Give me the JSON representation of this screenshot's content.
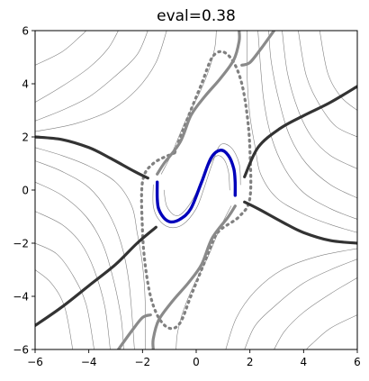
{
  "chart_data": {
    "type": "line",
    "title": "eval=0.38",
    "xlabel": "",
    "ylabel": "",
    "xlim": [
      -6,
      6
    ],
    "ylim": [
      -6,
      6
    ],
    "x_ticks": [
      -6,
      -4,
      -2,
      0,
      2,
      4,
      6
    ],
    "y_ticks": [
      -6,
      -4,
      -2,
      0,
      2,
      4,
      6
    ],
    "x_tick_labels": [
      "−6",
      "−4",
      "−2",
      "0",
      "2",
      "4",
      "6"
    ],
    "y_tick_labels": [
      "−6",
      "−4",
      "−2",
      "0",
      "2",
      "4",
      "6"
    ],
    "grid": false,
    "colors": {
      "flow_lines": "#808080",
      "separatrix": "#333333",
      "separatrix_gray": "#8a8a8a",
      "dotted_boundary": "#808080",
      "limit_cycle": "#0000bb"
    },
    "series": [
      {
        "role": "limit-cycle",
        "style": "solid-thick-blue",
        "points": [
          [
            -1.45,
            0.3
          ],
          [
            -1.45,
            -0.3
          ],
          [
            -1.4,
            -0.7
          ],
          [
            -1.2,
            -1.05
          ],
          [
            -0.95,
            -1.2
          ],
          [
            -0.6,
            -1.1
          ],
          [
            -0.2,
            -0.7
          ],
          [
            0.2,
            0.3
          ],
          [
            0.55,
            1.2
          ],
          [
            0.9,
            1.5
          ],
          [
            1.2,
            1.3
          ],
          [
            1.4,
            0.8
          ],
          [
            1.45,
            0.3
          ],
          [
            1.45,
            -0.2
          ]
        ]
      },
      {
        "role": "dotted-boundary",
        "style": "dotted",
        "points": [
          [
            -0.8,
            1.4
          ],
          [
            -0.4,
            2.5
          ],
          [
            0.2,
            4.0
          ],
          [
            0.6,
            5.0
          ],
          [
            1.0,
            5.2
          ],
          [
            1.4,
            4.8
          ],
          [
            1.7,
            4.0
          ],
          [
            1.9,
            2.8
          ],
          [
            2.0,
            1.5
          ],
          [
            2.0,
            -0.3
          ],
          [
            1.6,
            -1.0
          ],
          [
            0.8,
            -1.6
          ],
          [
            0.4,
            -2.5
          ],
          [
            -0.2,
            -4.0
          ],
          [
            -0.6,
            -5.0
          ],
          [
            -1.0,
            -5.2
          ],
          [
            -1.4,
            -4.8
          ],
          [
            -1.7,
            -4.0
          ],
          [
            -1.9,
            -2.8
          ],
          [
            -2.0,
            -1.5
          ],
          [
            -2.0,
            0.3
          ],
          [
            -1.6,
            1.0
          ],
          [
            -0.8,
            1.4
          ]
        ]
      },
      {
        "role": "separatrix",
        "style": "solid-thick-dark",
        "points": [
          [
            -6,
            2.0
          ],
          [
            -5,
            1.9
          ],
          [
            -4,
            1.6
          ],
          [
            -3.2,
            1.2
          ],
          [
            -2.3,
            0.7
          ],
          [
            -1.8,
            0.45
          ]
        ]
      },
      {
        "role": "separatrix",
        "style": "solid-thick-dark",
        "points": [
          [
            6,
            -2.0
          ],
          [
            5,
            -1.9
          ],
          [
            4,
            -1.6
          ],
          [
            3.2,
            -1.2
          ],
          [
            2.3,
            -0.7
          ],
          [
            1.8,
            -0.45
          ]
        ]
      },
      {
        "role": "separatrix",
        "style": "solid-thick-dark",
        "points": [
          [
            6,
            3.9
          ],
          [
            5,
            3.3
          ],
          [
            4,
            2.8
          ],
          [
            3.1,
            2.3
          ],
          [
            2.3,
            1.6
          ],
          [
            1.8,
            0.5
          ]
        ]
      },
      {
        "role": "separatrix",
        "style": "solid-thick-dark",
        "points": [
          [
            -6,
            -5.1
          ],
          [
            -5,
            -4.4
          ],
          [
            -4,
            -3.6
          ],
          [
            -3,
            -2.8
          ],
          [
            -2.2,
            -2.0
          ],
          [
            -1.5,
            -1.4
          ]
        ]
      },
      {
        "role": "separatrix",
        "style": "solid-thick-gray",
        "points": [
          [
            -1.45,
            0.6
          ],
          [
            -1.2,
            1.0
          ],
          [
            -0.6,
            1.8
          ],
          [
            -0.2,
            2.8
          ],
          [
            0.3,
            3.5
          ],
          [
            0.9,
            4.2
          ],
          [
            1.4,
            4.9
          ],
          [
            1.6,
            5.6
          ],
          [
            1.6,
            6.0
          ]
        ]
      },
      {
        "role": "separatrix",
        "style": "solid-thick-gray",
        "points": [
          [
            1.45,
            -0.6
          ],
          [
            1.2,
            -1.0
          ],
          [
            0.6,
            -1.8
          ],
          [
            0.2,
            -2.8
          ],
          [
            -0.3,
            -3.5
          ],
          [
            -0.9,
            -4.2
          ],
          [
            -1.4,
            -4.9
          ],
          [
            -1.6,
            -5.6
          ],
          [
            -1.6,
            -6.0
          ]
        ]
      },
      {
        "role": "separatrix",
        "style": "solid-thick-gray",
        "points": [
          [
            -2.9,
            -6.0
          ],
          [
            -2.4,
            -5.3
          ],
          [
            -2.0,
            -4.8
          ],
          [
            -1.7,
            -4.7
          ]
        ]
      },
      {
        "role": "separatrix",
        "style": "solid-thick-gray",
        "points": [
          [
            2.9,
            6.0
          ],
          [
            2.4,
            5.3
          ],
          [
            2.0,
            4.8
          ],
          [
            1.7,
            4.7
          ]
        ]
      },
      {
        "role": "flow-line",
        "style": "thin",
        "points": [
          [
            -6,
            4.7
          ],
          [
            -5,
            5.2
          ],
          [
            -4.3,
            5.8
          ],
          [
            -4.1,
            6.0
          ]
        ]
      },
      {
        "role": "flow-line",
        "style": "thin",
        "points": [
          [
            -6,
            3.3
          ],
          [
            -5,
            3.9
          ],
          [
            -4,
            4.6
          ],
          [
            -3.3,
            5.3
          ],
          [
            -2.9,
            6.0
          ]
        ]
      },
      {
        "role": "flow-line",
        "style": "thin",
        "points": [
          [
            -6,
            2.6
          ],
          [
            -5,
            3.0
          ],
          [
            -4,
            3.5
          ],
          [
            -3,
            4.3
          ],
          [
            -2.2,
            5.1
          ],
          [
            -1.8,
            6.0
          ]
        ]
      },
      {
        "role": "flow-line",
        "style": "thin",
        "points": [
          [
            -6,
            2.2
          ],
          [
            -4.5,
            2.5
          ],
          [
            -3.2,
            3.0
          ],
          [
            -2.2,
            3.8
          ],
          [
            -1.5,
            4.8
          ],
          [
            -1.1,
            6.0
          ]
        ]
      },
      {
        "role": "flow-line",
        "style": "thin",
        "points": [
          [
            -6,
            1.6
          ],
          [
            -5,
            1.3
          ],
          [
            -4,
            0.9
          ],
          [
            -3,
            0.3
          ],
          [
            -2.4,
            -0.6
          ],
          [
            -2.2,
            -1.6
          ],
          [
            -2.0,
            -2.8
          ],
          [
            -1.9,
            -4.2
          ],
          [
            -1.9,
            -6.0
          ]
        ]
      },
      {
        "role": "flow-line",
        "style": "thin",
        "points": [
          [
            -6,
            1.1
          ],
          [
            -5,
            0.7
          ],
          [
            -4,
            0.1
          ],
          [
            -3.3,
            -0.8
          ],
          [
            -2.8,
            -2.0
          ],
          [
            -2.5,
            -3.5
          ],
          [
            -2.3,
            -6.0
          ]
        ]
      },
      {
        "role": "flow-line",
        "style": "thin",
        "points": [
          [
            -6,
            0.3
          ],
          [
            -5,
            -0.2
          ],
          [
            -4.1,
            -1.0
          ],
          [
            -3.5,
            -2.0
          ],
          [
            -3.1,
            -3.3
          ],
          [
            -2.8,
            -4.8
          ],
          [
            -2.7,
            -6.0
          ]
        ]
      },
      {
        "role": "flow-line",
        "style": "thin",
        "points": [
          [
            -6,
            -0.8
          ],
          [
            -5,
            -1.3
          ],
          [
            -4.3,
            -2.0
          ],
          [
            -3.8,
            -3.0
          ],
          [
            -3.4,
            -4.4
          ],
          [
            -3.2,
            -6.0
          ]
        ]
      },
      {
        "role": "flow-line",
        "style": "thin",
        "points": [
          [
            -6,
            -2.0
          ],
          [
            -5.2,
            -2.4
          ],
          [
            -4.6,
            -3.2
          ],
          [
            -4.1,
            -4.3
          ],
          [
            -3.8,
            -6.0
          ]
        ]
      },
      {
        "role": "flow-line",
        "style": "thin",
        "points": [
          [
            -6,
            -3.0
          ],
          [
            -5.4,
            -3.5
          ],
          [
            -4.9,
            -4.4
          ],
          [
            -4.6,
            -6.0
          ]
        ]
      },
      {
        "role": "flow-line",
        "style": "thin",
        "points": [
          [
            6,
            -4.7
          ],
          [
            5,
            -5.2
          ],
          [
            4.3,
            -5.8
          ],
          [
            4.1,
            -6.0
          ]
        ]
      },
      {
        "role": "flow-line",
        "style": "thin",
        "points": [
          [
            6,
            -3.3
          ],
          [
            5,
            -3.9
          ],
          [
            4,
            -4.6
          ],
          [
            3.3,
            -5.3
          ],
          [
            2.9,
            -6.0
          ]
        ]
      },
      {
        "role": "flow-line",
        "style": "thin",
        "points": [
          [
            6,
            -2.6
          ],
          [
            5,
            -3.0
          ],
          [
            4,
            -3.5
          ],
          [
            3,
            -4.3
          ],
          [
            2.2,
            -5.1
          ],
          [
            1.8,
            -6.0
          ]
        ]
      },
      {
        "role": "flow-line",
        "style": "thin",
        "points": [
          [
            6,
            -2.2
          ],
          [
            4.5,
            -2.5
          ],
          [
            3.2,
            -3.0
          ],
          [
            2.2,
            -3.8
          ],
          [
            1.5,
            -4.8
          ],
          [
            1.1,
            -6.0
          ]
        ]
      },
      {
        "role": "flow-line",
        "style": "thin",
        "points": [
          [
            6,
            -1.6
          ],
          [
            5,
            -1.3
          ],
          [
            4,
            -0.9
          ],
          [
            3,
            -0.3
          ],
          [
            2.4,
            0.6
          ],
          [
            2.2,
            1.6
          ],
          [
            2.0,
            2.8
          ],
          [
            1.9,
            4.2
          ],
          [
            1.9,
            6.0
          ]
        ]
      },
      {
        "role": "flow-line",
        "style": "thin",
        "points": [
          [
            6,
            -1.1
          ],
          [
            5,
            -0.7
          ],
          [
            4,
            -0.1
          ],
          [
            3.3,
            0.8
          ],
          [
            2.8,
            2.0
          ],
          [
            2.5,
            3.5
          ],
          [
            2.3,
            6.0
          ]
        ]
      },
      {
        "role": "flow-line",
        "style": "thin",
        "points": [
          [
            6,
            -0.3
          ],
          [
            5,
            0.2
          ],
          [
            4.1,
            1.0
          ],
          [
            3.5,
            2.0
          ],
          [
            3.1,
            3.3
          ],
          [
            2.8,
            4.8
          ],
          [
            2.7,
            6.0
          ]
        ]
      },
      {
        "role": "flow-line",
        "style": "thin",
        "points": [
          [
            6,
            0.8
          ],
          [
            5,
            1.3
          ],
          [
            4.3,
            2.0
          ],
          [
            3.8,
            3.0
          ],
          [
            3.4,
            4.4
          ],
          [
            3.2,
            6.0
          ]
        ]
      },
      {
        "role": "flow-line",
        "style": "thin",
        "points": [
          [
            6,
            2.0
          ],
          [
            5.2,
            2.4
          ],
          [
            4.6,
            3.2
          ],
          [
            4.1,
            4.3
          ],
          [
            3.8,
            6.0
          ]
        ]
      },
      {
        "role": "flow-line",
        "style": "thin",
        "points": [
          [
            6,
            3.0
          ],
          [
            5.4,
            3.5
          ],
          [
            4.9,
            4.4
          ],
          [
            4.6,
            6.0
          ]
        ]
      },
      {
        "role": "flow-line",
        "style": "thin",
        "points": [
          [
            -1.3,
            0.6
          ],
          [
            -0.9,
            1.4
          ],
          [
            -0.4,
            2.6
          ],
          [
            0.1,
            3.6
          ],
          [
            0.5,
            4.6
          ],
          [
            0.7,
            5.4
          ],
          [
            0.75,
            6.0
          ]
        ]
      },
      {
        "role": "flow-line",
        "style": "thin",
        "points": [
          [
            1.3,
            -0.6
          ],
          [
            0.9,
            -1.4
          ],
          [
            0.4,
            -2.6
          ],
          [
            -0.1,
            -3.6
          ],
          [
            -0.5,
            -4.6
          ],
          [
            -0.7,
            -5.4
          ],
          [
            -0.75,
            -6.0
          ]
        ]
      },
      {
        "role": "flow-line",
        "style": "thin",
        "points": [
          [
            -1.2,
            0.0
          ],
          [
            -1.1,
            -0.6
          ],
          [
            -0.8,
            -0.95
          ],
          [
            -0.5,
            -0.85
          ],
          [
            -0.1,
            -0.3
          ],
          [
            0.3,
            0.6
          ],
          [
            0.7,
            1.25
          ],
          [
            1.0,
            1.2
          ],
          [
            1.2,
            0.7
          ],
          [
            1.25,
            0.0
          ]
        ]
      },
      {
        "role": "flow-line",
        "style": "thin",
        "points": [
          [
            -1.6,
            0.2
          ],
          [
            -1.6,
            -0.6
          ],
          [
            -1.4,
            -1.1
          ],
          [
            -1.0,
            -1.4
          ],
          [
            -0.5,
            -1.3
          ],
          [
            0.0,
            -0.7
          ],
          [
            0.3,
            0.1
          ],
          [
            0.6,
            1.0
          ],
          [
            0.9,
            1.7
          ],
          [
            1.3,
            1.6
          ],
          [
            1.6,
            1.0
          ],
          [
            1.65,
            0.2
          ]
        ]
      }
    ]
  }
}
